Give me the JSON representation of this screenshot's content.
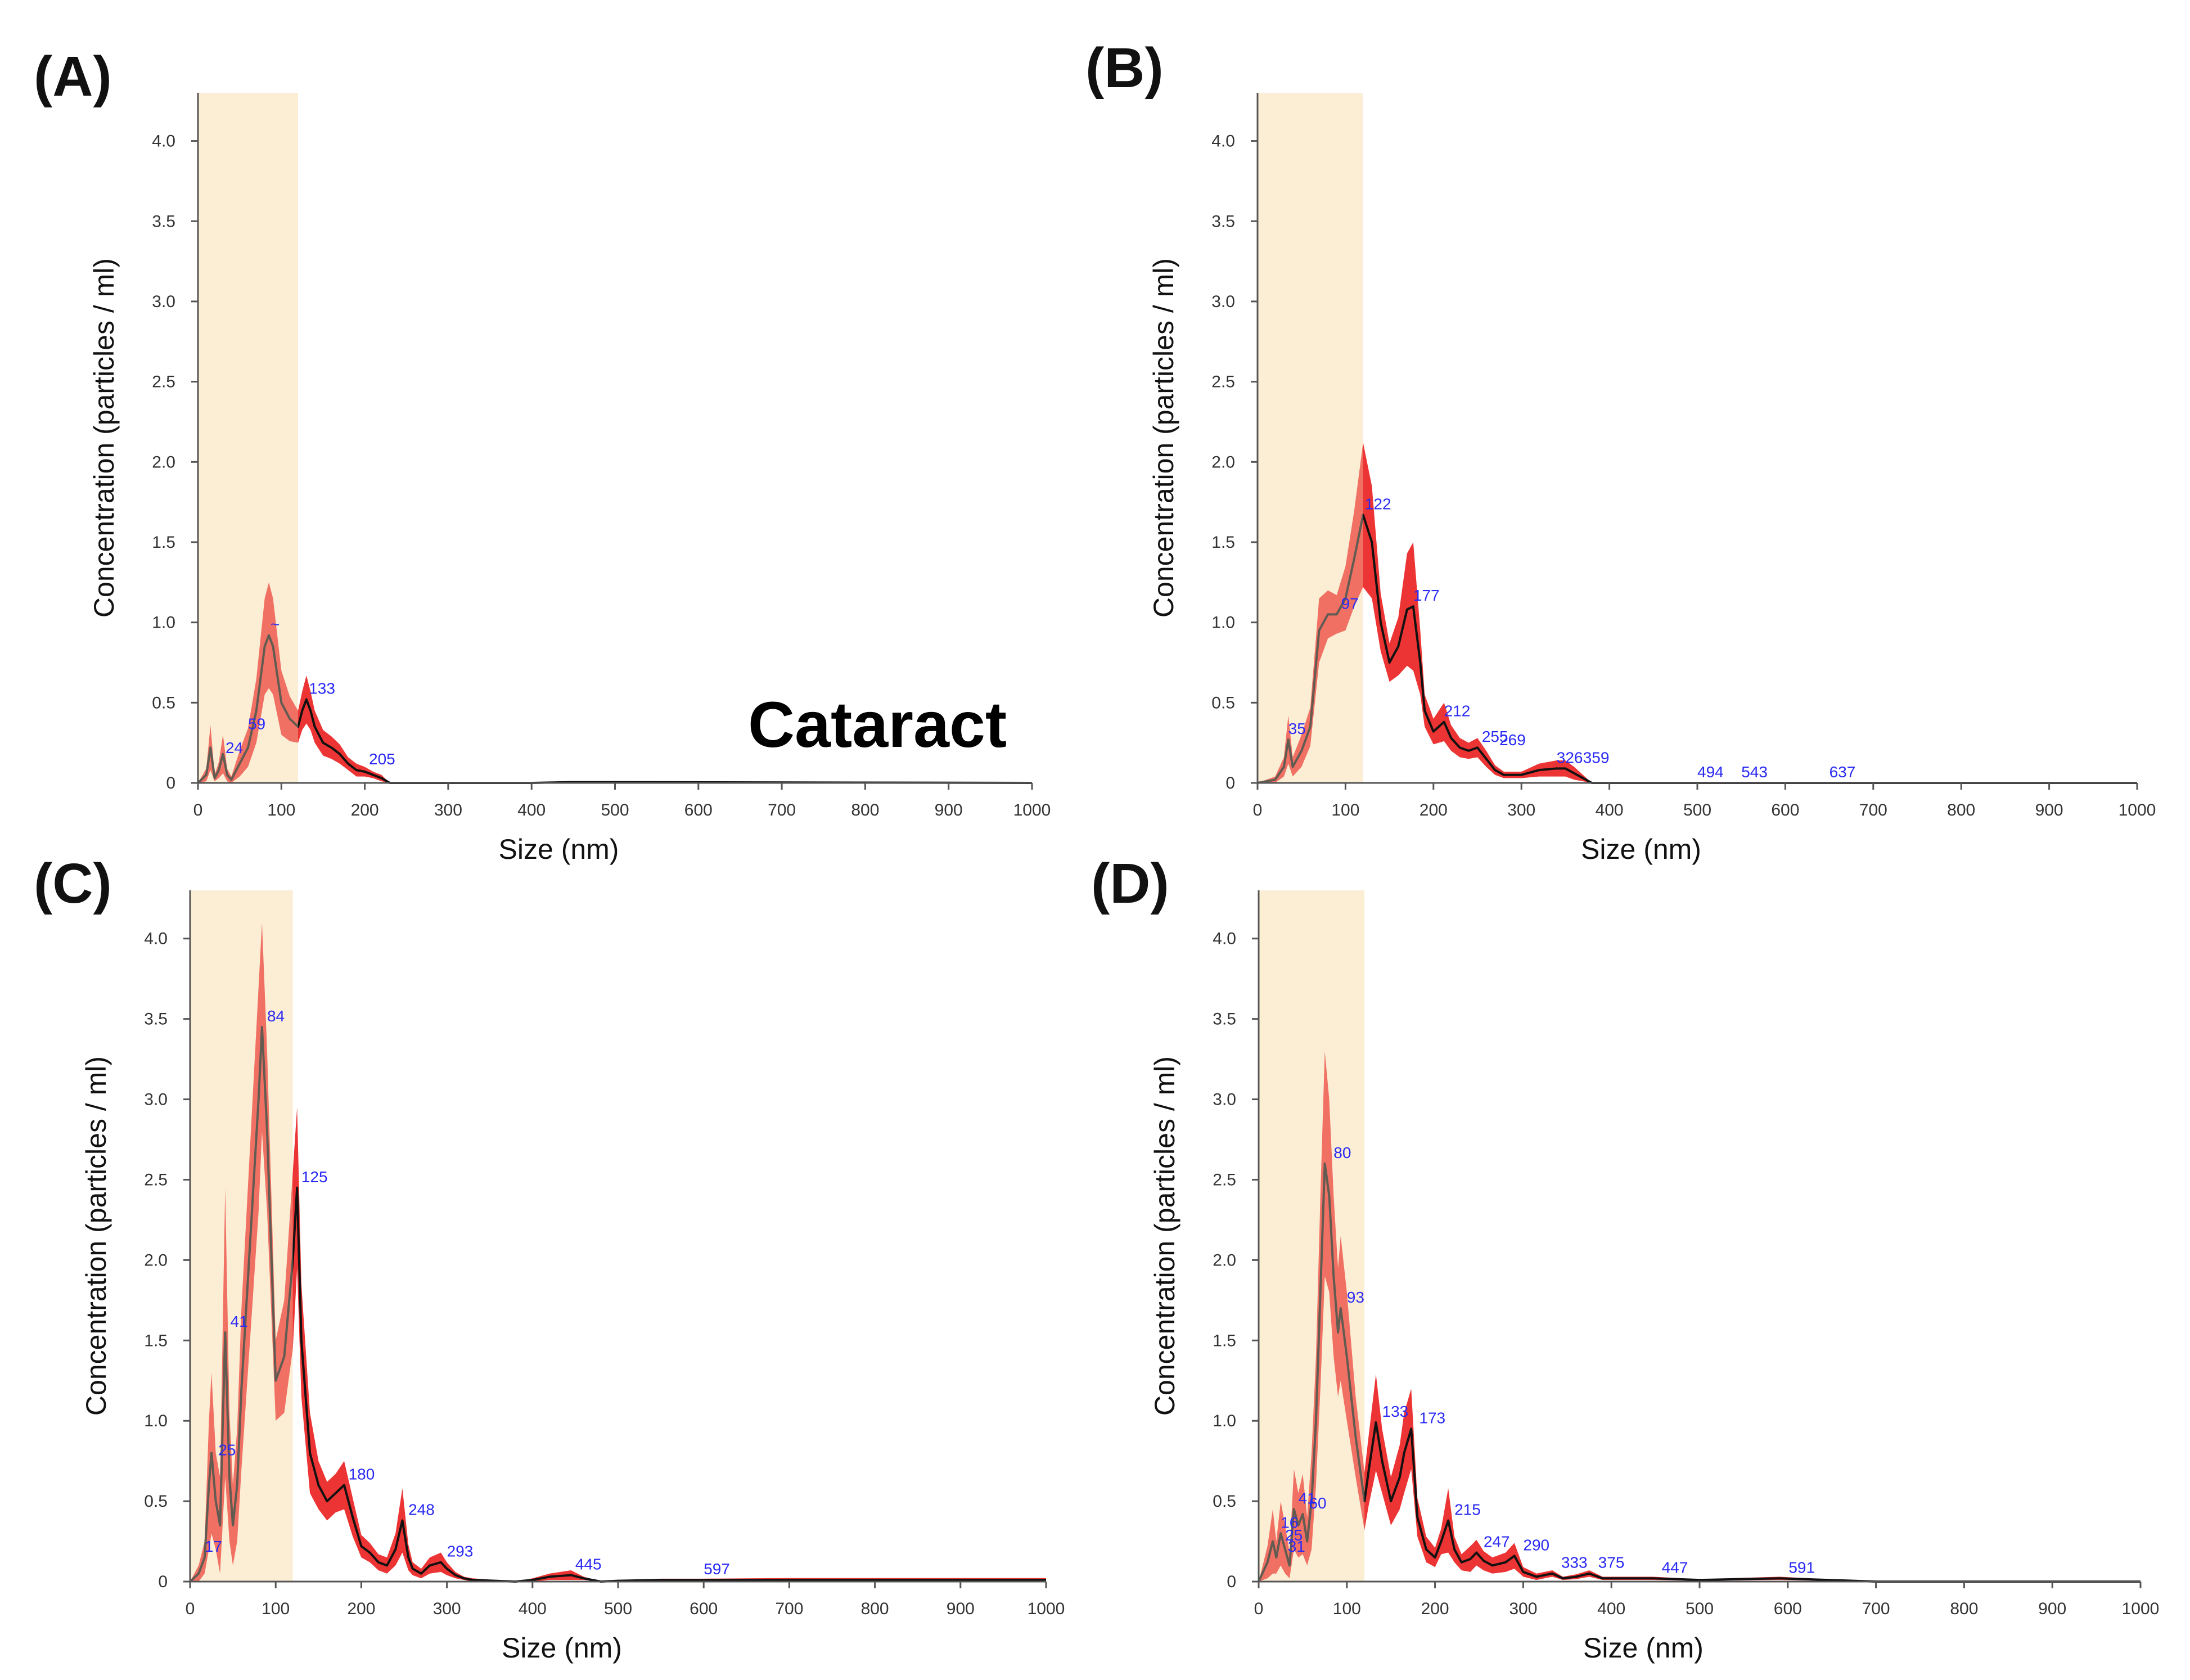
{
  "figure": {
    "annotation": "Cataract"
  },
  "chart_data": [
    {
      "type": "area",
      "panel": "(A)",
      "xlabel": "Size (nm)",
      "ylabel": "Concentration (particles / ml)",
      "xlim": [
        0,
        1000
      ],
      "ylim": [
        0,
        4.3
      ],
      "xticks": [
        "0",
        "100",
        "200",
        "300",
        "400",
        "500",
        "600",
        "700",
        "800",
        "900",
        "1000"
      ],
      "yticks": [
        "0",
        "0.5",
        "1.0",
        "1.5",
        "2.0",
        "2.5",
        "3.0",
        "3.5",
        "4.0"
      ],
      "highlight_range": [
        0,
        120
      ],
      "series": [
        {
          "name": "mean",
          "x": [
            0,
            10,
            15,
            20,
            25,
            30,
            35,
            40,
            50,
            60,
            70,
            80,
            85,
            90,
            100,
            110,
            120,
            125,
            130,
            135,
            140,
            150,
            160,
            170,
            180,
            190,
            200,
            210,
            220,
            230,
            400,
            450,
            1000
          ],
          "values": [
            0,
            0.05,
            0.22,
            0.03,
            0.08,
            0.18,
            0.05,
            0.02,
            0.12,
            0.22,
            0.45,
            0.85,
            0.92,
            0.85,
            0.5,
            0.4,
            0.35,
            0.45,
            0.52,
            0.45,
            0.35,
            0.25,
            0.22,
            0.18,
            0.12,
            0.08,
            0.07,
            0.05,
            0.03,
            0,
            0,
            0.005,
            0
          ],
          "err": [
            0,
            0.04,
            0.14,
            0.02,
            0.05,
            0.12,
            0.04,
            0.02,
            0.08,
            0.12,
            0.2,
            0.3,
            0.33,
            0.3,
            0.2,
            0.14,
            0.1,
            0.12,
            0.15,
            0.12,
            0.1,
            0.08,
            0.07,
            0.06,
            0.04,
            0.04,
            0.03,
            0.02,
            0.02,
            0,
            0,
            0.003,
            0
          ]
        }
      ],
      "peak_labels": [
        {
          "x": 87,
          "y": 0.92,
          "text": "~"
        },
        {
          "x": 133,
          "y": 0.52,
          "text": "133"
        },
        {
          "x": 60,
          "y": 0.3,
          "text": "59"
        },
        {
          "x": 33,
          "y": 0.15,
          "text": "24"
        },
        {
          "x": 205,
          "y": 0.08,
          "text": "205"
        }
      ]
    },
    {
      "type": "area",
      "panel": "(B)",
      "xlabel": "Size (nm)",
      "ylabel": "Concentration (particles / ml)",
      "xlim": [
        0,
        1000
      ],
      "ylim": [
        0,
        4.3
      ],
      "xticks": [
        "0",
        "100",
        "200",
        "300",
        "400",
        "500",
        "600",
        "700",
        "800",
        "900",
        "1000"
      ],
      "yticks": [
        "0",
        "0.5",
        "1.0",
        "1.5",
        "2.0",
        "2.5",
        "3.0",
        "3.5",
        "4.0"
      ],
      "highlight_range": [
        0,
        120
      ],
      "series": [
        {
          "name": "mean",
          "x": [
            0,
            20,
            30,
            35,
            40,
            50,
            60,
            70,
            80,
            90,
            100,
            110,
            120,
            130,
            140,
            150,
            160,
            170,
            177,
            185,
            190,
            200,
            212,
            220,
            230,
            240,
            250,
            260,
            270,
            280,
            300,
            320,
            340,
            350,
            360,
            370,
            380,
            1000
          ],
          "values": [
            0,
            0.02,
            0.1,
            0.27,
            0.1,
            0.2,
            0.35,
            0.95,
            1.05,
            1.05,
            1.15,
            1.4,
            1.67,
            1.5,
            1.0,
            0.75,
            0.85,
            1.08,
            1.1,
            0.75,
            0.45,
            0.32,
            0.38,
            0.28,
            0.22,
            0.2,
            0.22,
            0.15,
            0.08,
            0.05,
            0.05,
            0.08,
            0.09,
            0.09,
            0.06,
            0.03,
            0,
            0
          ],
          "err": [
            0,
            0.02,
            0.06,
            0.15,
            0.06,
            0.1,
            0.12,
            0.2,
            0.15,
            0.12,
            0.2,
            0.3,
            0.45,
            0.35,
            0.18,
            0.12,
            0.18,
            0.35,
            0.4,
            0.2,
            0.1,
            0.08,
            0.12,
            0.08,
            0.06,
            0.05,
            0.06,
            0.05,
            0.03,
            0.02,
            0.02,
            0.04,
            0.05,
            0.05,
            0.04,
            0.02,
            0,
            0
          ]
        }
      ],
      "peak_labels": [
        {
          "x": 35,
          "y": 0.27,
          "text": "35"
        },
        {
          "x": 95,
          "y": 1.05,
          "text": "97"
        },
        {
          "x": 122,
          "y": 1.67,
          "text": "122"
        },
        {
          "x": 177,
          "y": 1.1,
          "text": "177"
        },
        {
          "x": 212,
          "y": 0.38,
          "text": "212"
        },
        {
          "x": 255,
          "y": 0.22,
          "text": "255"
        },
        {
          "x": 275,
          "y": 0.2,
          "text": "269"
        },
        {
          "x": 340,
          "y": 0.09,
          "text": "326"
        },
        {
          "x": 370,
          "y": 0.09,
          "text": "359"
        },
        {
          "x": 500,
          "y": 0.0,
          "text": "494"
        },
        {
          "x": 550,
          "y": 0.0,
          "text": "543"
        },
        {
          "x": 650,
          "y": 0.0,
          "text": "637"
        }
      ]
    },
    {
      "type": "area",
      "panel": "(C)",
      "xlabel": "Size (nm)",
      "ylabel": "Concentration (particles / ml)",
      "xlim": [
        0,
        1000
      ],
      "ylim": [
        0,
        4.3
      ],
      "xticks": [
        "0",
        "100",
        "200",
        "300",
        "400",
        "500",
        "600",
        "700",
        "800",
        "900",
        "1000"
      ],
      "yticks": [
        "0",
        "0.5",
        "1.0",
        "1.5",
        "2.0",
        "2.5",
        "3.0",
        "3.5",
        "4.0"
      ],
      "highlight_range": [
        0,
        120
      ],
      "series": [
        {
          "name": "mean",
          "x": [
            0,
            10,
            17,
            22,
            25,
            30,
            35,
            41,
            46,
            50,
            55,
            60,
            70,
            80,
            84,
            90,
            100,
            110,
            120,
            125,
            130,
            140,
            150,
            160,
            170,
            180,
            190,
            200,
            210,
            220,
            230,
            240,
            248,
            255,
            260,
            270,
            280,
            293,
            300,
            310,
            320,
            330,
            380,
            400,
            420,
            445,
            460,
            480,
            500,
            550,
            597,
            650,
            700,
            1000
          ],
          "values": [
            0,
            0.05,
            0.15,
            0.6,
            0.8,
            0.5,
            0.35,
            1.55,
            0.65,
            0.35,
            0.6,
            1.2,
            2.1,
            3.0,
            3.45,
            2.8,
            1.25,
            1.4,
            2.0,
            2.45,
            1.5,
            0.8,
            0.6,
            0.5,
            0.55,
            0.6,
            0.4,
            0.22,
            0.18,
            0.12,
            0.1,
            0.2,
            0.38,
            0.15,
            0.08,
            0.05,
            0.1,
            0.12,
            0.08,
            0.04,
            0.02,
            0.01,
            0,
            0.01,
            0.03,
            0.04,
            0.02,
            0,
            0.005,
            0.01,
            0.01,
            0.01,
            0.01,
            0.01
          ],
          "err": [
            0,
            0.05,
            0.1,
            0.4,
            0.5,
            0.3,
            0.3,
            0.9,
            0.4,
            0.25,
            0.35,
            0.5,
            0.6,
            0.7,
            0.65,
            0.5,
            0.25,
            0.35,
            0.55,
            0.5,
            0.35,
            0.25,
            0.15,
            0.12,
            0.12,
            0.15,
            0.12,
            0.07,
            0.06,
            0.05,
            0.05,
            0.1,
            0.2,
            0.08,
            0.04,
            0.03,
            0.05,
            0.06,
            0.04,
            0.02,
            0.01,
            0.01,
            0,
            0.01,
            0.02,
            0.03,
            0.01,
            0,
            0.004,
            0.008,
            0.008,
            0.01,
            0.012,
            0.012
          ]
        }
      ],
      "peak_labels": [
        {
          "x": 17,
          "y": 0.15,
          "text": "17"
        },
        {
          "x": 33,
          "y": 0.75,
          "text": "25"
        },
        {
          "x": 47,
          "y": 1.55,
          "text": "41"
        },
        {
          "x": 90,
          "y": 3.45,
          "text": "84"
        },
        {
          "x": 130,
          "y": 2.45,
          "text": "125"
        },
        {
          "x": 185,
          "y": 0.6,
          "text": "180"
        },
        {
          "x": 255,
          "y": 0.38,
          "text": "248"
        },
        {
          "x": 300,
          "y": 0.12,
          "text": "293"
        },
        {
          "x": 450,
          "y": 0.04,
          "text": "445"
        },
        {
          "x": 600,
          "y": 0.01,
          "text": "597"
        }
      ]
    },
    {
      "type": "area",
      "panel": "(D)",
      "xlabel": "Size (nm)",
      "ylabel": "Concentration (particles / ml)",
      "xlim": [
        0,
        1000
      ],
      "ylim": [
        0,
        4.3
      ],
      "xticks": [
        "0",
        "100",
        "200",
        "300",
        "400",
        "500",
        "600",
        "700",
        "800",
        "900",
        "1000"
      ],
      "yticks": [
        "0",
        "0.5",
        "1.0",
        "1.5",
        "2.0",
        "2.5",
        "3.0",
        "3.5",
        "4.0"
      ],
      "highlight_range": [
        0,
        120
      ],
      "series": [
        {
          "name": "mean",
          "x": [
            0,
            10,
            16,
            20,
            25,
            30,
            35,
            40,
            45,
            50,
            55,
            60,
            65,
            70,
            75,
            80,
            85,
            90,
            93,
            100,
            110,
            120,
            125,
            133,
            140,
            150,
            160,
            165,
            173,
            180,
            190,
            200,
            207,
            215,
            222,
            230,
            240,
            247,
            255,
            265,
            280,
            290,
            300,
            315,
            333,
            345,
            360,
            375,
            390,
            447,
            500,
            591,
            700,
            1000
          ],
          "values": [
            0,
            0.12,
            0.25,
            0.15,
            0.3,
            0.2,
            0.1,
            0.45,
            0.35,
            0.42,
            0.25,
            0.5,
            1.0,
            1.8,
            2.6,
            2.4,
            1.9,
            1.55,
            1.7,
            1.4,
            0.9,
            0.5,
            0.7,
            0.99,
            0.75,
            0.5,
            0.65,
            0.8,
            0.95,
            0.4,
            0.2,
            0.15,
            0.25,
            0.38,
            0.2,
            0.12,
            0.14,
            0.18,
            0.13,
            0.1,
            0.12,
            0.16,
            0.06,
            0.03,
            0.05,
            0.02,
            0.03,
            0.05,
            0.02,
            0.02,
            0.01,
            0.02,
            0.0,
            0.0
          ],
          "err": [
            0,
            0.1,
            0.2,
            0.1,
            0.2,
            0.15,
            0.08,
            0.25,
            0.2,
            0.25,
            0.15,
            0.3,
            0.4,
            0.6,
            0.7,
            0.6,
            0.5,
            0.4,
            0.45,
            0.4,
            0.25,
            0.18,
            0.22,
            0.3,
            0.2,
            0.15,
            0.2,
            0.25,
            0.25,
            0.12,
            0.08,
            0.06,
            0.08,
            0.2,
            0.08,
            0.05,
            0.08,
            0.08,
            0.06,
            0.05,
            0.06,
            0.08,
            0.03,
            0.02,
            0.02,
            0.01,
            0.015,
            0.02,
            0.01,
            0.01,
            0.005,
            0.01,
            0.0,
            0.0
          ]
        }
      ],
      "peak_labels": [
        {
          "x": 45,
          "y": 0.45,
          "text": "41"
        },
        {
          "x": 57,
          "y": 0.42,
          "text": "60"
        },
        {
          "x": 25,
          "y": 0.3,
          "text": "16"
        },
        {
          "x": 30,
          "y": 0.22,
          "text": "25"
        },
        {
          "x": 33,
          "y": 0.15,
          "text": "31"
        },
        {
          "x": 85,
          "y": 2.6,
          "text": "80"
        },
        {
          "x": 100,
          "y": 1.7,
          "text": "93"
        },
        {
          "x": 140,
          "y": 0.99,
          "text": "133"
        },
        {
          "x": 182,
          "y": 0.95,
          "text": "173"
        },
        {
          "x": 222,
          "y": 0.38,
          "text": "215"
        },
        {
          "x": 255,
          "y": 0.18,
          "text": "247"
        },
        {
          "x": 300,
          "y": 0.16,
          "text": "290"
        },
        {
          "x": 343,
          "y": 0.05,
          "text": "333"
        },
        {
          "x": 385,
          "y": 0.05,
          "text": "375"
        },
        {
          "x": 457,
          "y": 0.02,
          "text": "447"
        },
        {
          "x": 601,
          "y": 0.02,
          "text": "591"
        }
      ]
    }
  ]
}
